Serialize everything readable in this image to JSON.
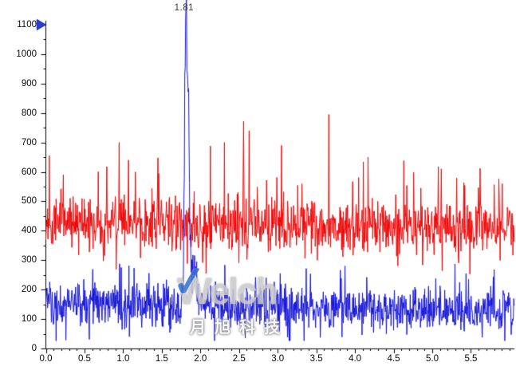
{
  "watermark": {
    "brand": "Welch",
    "chinese_chars": [
      "月",
      "旭",
      "科",
      "技"
    ],
    "check_color": "#3c74cf"
  },
  "axis_marker": {
    "shape": "right-pointing-triangle",
    "color": "#2a3ec8",
    "at_value": 1100
  },
  "chart_data": {
    "type": "line",
    "title": "",
    "xlabel": "",
    "ylabel": "",
    "xlim": [
      0,
      6.06
    ],
    "ylim": [
      0,
      1115
    ],
    "grid": false,
    "legend": null,
    "x_major_step": 0.5,
    "x_minor_step": 0.1,
    "y_major_step": 100,
    "y_minor_step": 50,
    "x_major_tick_labels": [
      "0.0",
      "0.5",
      "1.0",
      "1.5",
      "2.0",
      "2.5",
      "3.0",
      "3.5",
      "4.0",
      "4.5",
      "5.0",
      "5.5"
    ],
    "y_major_tick_labels": [
      "0",
      "100",
      "200",
      "300",
      "400",
      "500",
      "600",
      "700",
      "800",
      "900",
      "1000",
      "1100"
    ],
    "axis_color": "#000000",
    "peak_annotation": {
      "text": "1.81",
      "x": 1.81,
      "y": 1122
    },
    "n_points": 1100,
    "series": [
      {
        "name": "red-trace",
        "color": "#ee0000",
        "baseline_start": 428,
        "baseline_end": 408,
        "noise_amplitude": 95,
        "clip_min": 246,
        "clip_max": 705,
        "spike_probability": 0.12,
        "spike_extra": 170,
        "dip_probability": 0.08,
        "dip_extra": 120,
        "seed": 1337,
        "peaks": [],
        "spikes": [
          {
            "x": 0.045,
            "y": 655
          },
          {
            "x": 0.95,
            "y": 700
          },
          {
            "x": 1.07,
            "y": 640
          },
          {
            "x": 1.45,
            "y": 648
          },
          {
            "x": 2.13,
            "y": 688
          },
          {
            "x": 2.31,
            "y": 700
          },
          {
            "x": 2.56,
            "y": 772
          },
          {
            "x": 2.63,
            "y": 740
          },
          {
            "x": 3.05,
            "y": 690
          },
          {
            "x": 3.66,
            "y": 795
          },
          {
            "x": 4.17,
            "y": 650
          },
          {
            "x": 4.63,
            "y": 638
          },
          {
            "x": 5.08,
            "y": 618
          },
          {
            "x": 5.62,
            "y": 612
          }
        ]
      },
      {
        "name": "blue-trace",
        "color": "#1414d8",
        "baseline_start": 148,
        "baseline_end": 132,
        "noise_amplitude": 80,
        "clip_min": 26,
        "clip_max": 388,
        "spike_probability": 0.1,
        "spike_extra": 110,
        "dip_probability": 0.08,
        "dip_extra": 95,
        "seed": 90210,
        "peaks": [
          {
            "center": 1.812,
            "sigma": 0.016,
            "amplitude": 972
          },
          {
            "center": 1.846,
            "sigma": 0.012,
            "amplitude": 545
          },
          {
            "center": 1.9,
            "sigma": 0.05,
            "amplitude": 130
          }
        ],
        "spikes": [
          {
            "x": 1.81,
            "y": 1122
          }
        ]
      }
    ]
  }
}
